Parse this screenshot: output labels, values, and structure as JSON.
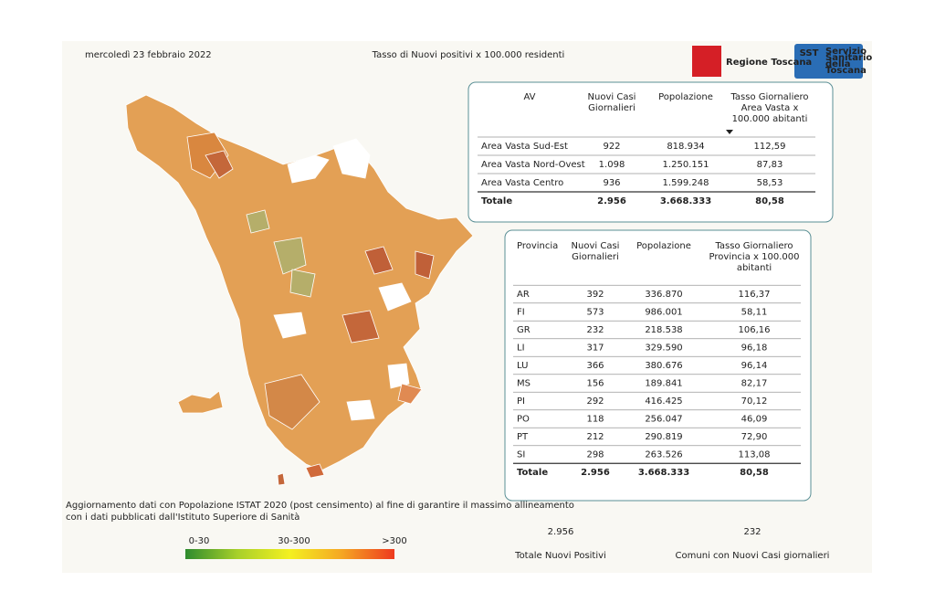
{
  "header": {
    "date": "mercoledì 23 febbraio 2022",
    "title": "Tasso di Nuovi positivi x 100.000 residenti",
    "logo_regione": "Regione Toscana",
    "logo_sst": {
      "abbr": "SST",
      "name": [
        "Servizio",
        "Sanitario",
        "della",
        "Toscana"
      ]
    }
  },
  "av_table": {
    "columns": [
      [
        "AV"
      ],
      [
        "Nuovi Casi",
        "Giornalieri"
      ],
      [
        "Popolazione"
      ],
      [
        "Tasso Giornaliero",
        "Area Vasta x",
        "100.000 abitanti"
      ]
    ],
    "rows": [
      [
        "Area Vasta Sud-Est",
        "922",
        "818.934",
        "112,59"
      ],
      [
        "Area Vasta Nord-Ovest",
        "1.098",
        "1.250.151",
        "87,83"
      ],
      [
        "Area Vasta Centro",
        "936",
        "1.599.248",
        "58,53"
      ]
    ],
    "total": [
      "Totale",
      "2.956",
      "3.668.333",
      "80,58"
    ]
  },
  "province_table": {
    "columns": [
      [
        "Provincia"
      ],
      [
        "Nuovi Casi",
        "Giornalieri"
      ],
      [
        "Popolazione"
      ],
      [
        "Tasso Giornaliero",
        "Provincia x 100.000",
        "abitanti"
      ]
    ],
    "rows": [
      [
        "AR",
        "392",
        "336.870",
        "116,37"
      ],
      [
        "FI",
        "573",
        "986.001",
        "58,11"
      ],
      [
        "GR",
        "232",
        "218.538",
        "106,16"
      ],
      [
        "LI",
        "317",
        "329.590",
        "96,18"
      ],
      [
        "LU",
        "366",
        "380.676",
        "96,14"
      ],
      [
        "MS",
        "156",
        "189.841",
        "82,17"
      ],
      [
        "PI",
        "292",
        "416.425",
        "70,12"
      ],
      [
        "PO",
        "118",
        "256.047",
        "46,09"
      ],
      [
        "PT",
        "212",
        "290.819",
        "72,90"
      ],
      [
        "SI",
        "298",
        "263.526",
        "113,08"
      ]
    ],
    "total": [
      "Totale",
      "2.956",
      "3.668.333",
      "80,58"
    ]
  },
  "note": [
    "Aggiornamento dati con Popolazione ISTAT 2020 (post censimento) al fine di garantire il massimo allineamento",
    "con i dati pubblicati dall'Istituto Superiore di Sanità"
  ],
  "legend": {
    "labels": [
      "0-30",
      "30-300",
      ">300"
    ]
  },
  "kpis": [
    {
      "value": "2.956",
      "label": "Totale Nuovi Positivi"
    },
    {
      "value": "232",
      "label": "Comuni con Nuovi Casi giornalieri"
    }
  ]
}
